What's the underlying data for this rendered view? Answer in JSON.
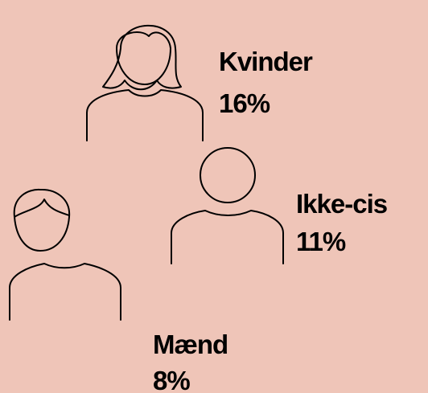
{
  "groups": [
    {
      "label": "Kvinder",
      "value": "16%"
    },
    {
      "label": "Ikke-cis",
      "value": "11%"
    },
    {
      "label": "Mænd",
      "value": "8%"
    }
  ]
}
